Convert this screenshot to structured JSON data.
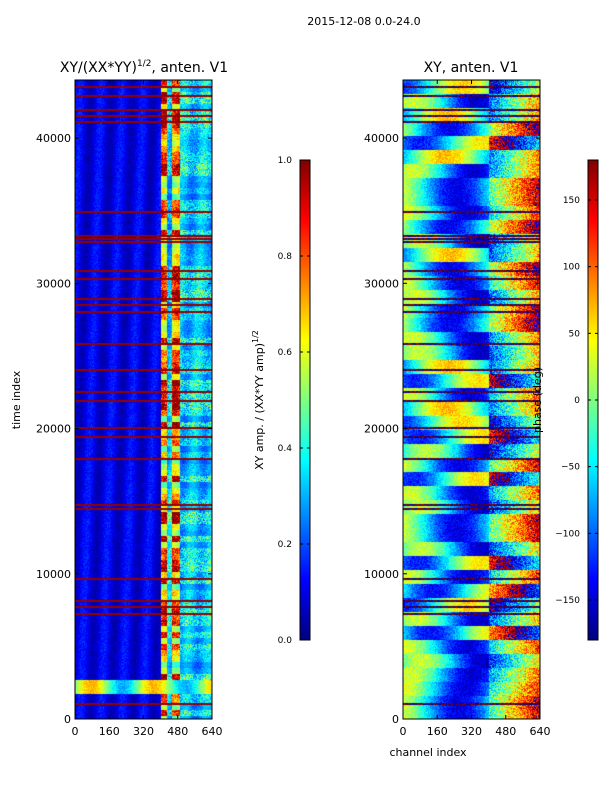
{
  "figure": {
    "suptitle": "2015-12-08 0.0-24.0",
    "xlabel": "channel index"
  },
  "colormap": {
    "name": "jet",
    "stops": [
      "#00007f",
      "#0000ff",
      "#007fff",
      "#00ffff",
      "#7fff7f",
      "#ffff00",
      "#ff7f00",
      "#ff0000",
      "#7f0000"
    ]
  },
  "chart_data": [
    {
      "type": "heatmap",
      "title_base": "XY/(XX*YY)",
      "title_sup": "1/2",
      "title_tail": ", anten. V1",
      "ylabel": "time index",
      "xlim": [
        0,
        640
      ],
      "ylim": [
        0,
        44000
      ],
      "x_ticks": [
        "0",
        "160",
        "320",
        "480",
        "640"
      ],
      "y_ticks": [
        "0",
        "10000",
        "20000",
        "30000",
        "40000"
      ],
      "value_range": [
        0.0,
        1.0
      ],
      "colorbar": {
        "label_base": "XY amp. / (XX*YY amp)",
        "label_sup": "1/2",
        "ticks": [
          "0.0",
          "0.2",
          "0.4",
          "0.6",
          "0.8",
          "1.0"
        ]
      },
      "features": {
        "high_channel_band": [
          400,
          640
        ],
        "strong_rfi_channels": [
          410,
          470
        ],
        "flagged_rows": [
          1100,
          7300,
          7800,
          8200,
          9700,
          14500,
          14800,
          18000,
          19500,
          20100,
          22000,
          22600,
          24100,
          25900,
          28100,
          28600,
          29000,
          30400,
          30900,
          32900,
          33100,
          33300,
          35000,
          41200,
          41600,
          42000,
          43000,
          43600
        ],
        "bright_band_rows": [
          1800,
          2700
        ]
      }
    },
    {
      "type": "heatmap",
      "title": "XY, anten. V1",
      "xlim": [
        0,
        640
      ],
      "ylim": [
        0,
        44000
      ],
      "x_ticks": [
        "0",
        "160",
        "320",
        "480",
        "640"
      ],
      "y_ticks": [
        "0",
        "10000",
        "20000",
        "30000",
        "40000"
      ],
      "value_range": [
        -180,
        180
      ],
      "colorbar": {
        "label": "phase (deg)",
        "ticks": [
          "−150",
          "−100",
          "−50",
          "0",
          "50",
          "100",
          "150"
        ]
      }
    }
  ]
}
